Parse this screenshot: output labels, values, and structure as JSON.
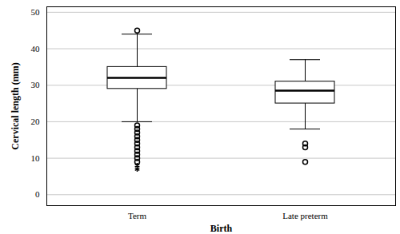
{
  "chart_data": {
    "type": "boxplot",
    "x_label": "Birth",
    "y_label": "Cervical length (mm)",
    "categories": [
      "Term",
      "Late preterm"
    ],
    "boxes": [
      {
        "min": 20,
        "q1": 29,
        "median": 32,
        "q3": 35,
        "max": 44,
        "outliers": [
          45,
          19,
          18,
          17,
          16,
          15,
          14,
          13,
          12,
          11,
          10,
          9
        ],
        "extremes": [
          8,
          7
        ]
      },
      {
        "min": 18,
        "q1": 25,
        "median": 28.5,
        "q3": 31,
        "max": 37,
        "outliers": [
          14,
          13,
          9
        ],
        "extremes": []
      }
    ],
    "ylim": [
      -3,
      51.5
    ],
    "yticks": [
      0,
      10,
      20,
      30,
      40,
      50
    ],
    "grid": true,
    "color": "#ffffff",
    "marker": "circle"
  }
}
